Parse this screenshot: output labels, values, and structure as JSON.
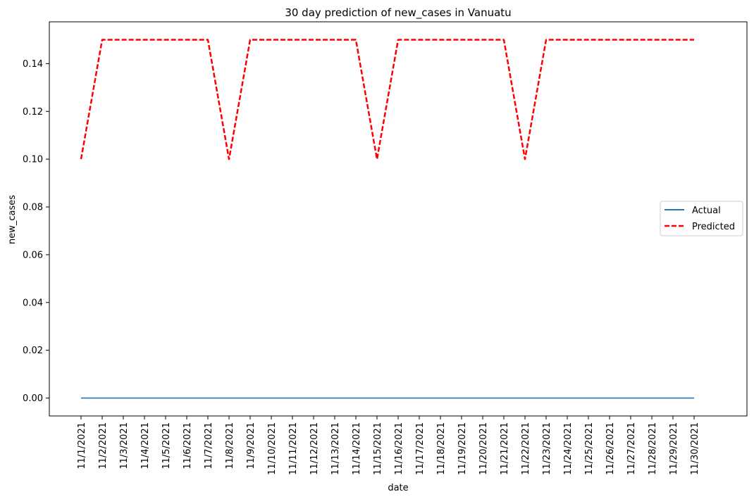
{
  "chart_data": {
    "type": "line",
    "title": "30 day prediction of new_cases in Vanuatu",
    "xlabel": "date",
    "ylabel": "new_cases",
    "x": [
      "11/1/2021",
      "11/2/2021",
      "11/3/2021",
      "11/4/2021",
      "11/5/2021",
      "11/6/2021",
      "11/7/2021",
      "11/8/2021",
      "11/9/2021",
      "11/10/2021",
      "11/11/2021",
      "11/12/2021",
      "11/13/2021",
      "11/14/2021",
      "11/15/2021",
      "11/16/2021",
      "11/17/2021",
      "11/18/2021",
      "11/19/2021",
      "11/20/2021",
      "11/21/2021",
      "11/22/2021",
      "11/23/2021",
      "11/24/2021",
      "11/25/2021",
      "11/26/2021",
      "11/27/2021",
      "11/28/2021",
      "11/29/2021",
      "11/30/2021"
    ],
    "series": [
      {
        "name": "Actual",
        "color": "#1f77b4",
        "style": "solid",
        "values": [
          0,
          0,
          0,
          0,
          0,
          0,
          0,
          0,
          0,
          0,
          0,
          0,
          0,
          0,
          0,
          0,
          0,
          0,
          0,
          0,
          0,
          0,
          0,
          0,
          0,
          0,
          0,
          0,
          0,
          0
        ]
      },
      {
        "name": "Predicted",
        "color": "#ff0000",
        "style": "dashed",
        "values": [
          0.1,
          0.15,
          0.15,
          0.15,
          0.15,
          0.15,
          0.15,
          0.1,
          0.15,
          0.15,
          0.15,
          0.15,
          0.15,
          0.15,
          0.1,
          0.15,
          0.15,
          0.15,
          0.15,
          0.15,
          0.15,
          0.1,
          0.15,
          0.15,
          0.15,
          0.15,
          0.15,
          0.15,
          0.15,
          0.15
        ]
      }
    ],
    "yticks": [
      "0.00",
      "0.02",
      "0.04",
      "0.06",
      "0.08",
      "0.10",
      "0.12",
      "0.14"
    ],
    "ylim": [
      -0.0075,
      0.1575
    ],
    "grid": false,
    "legend_position": "center-right"
  }
}
